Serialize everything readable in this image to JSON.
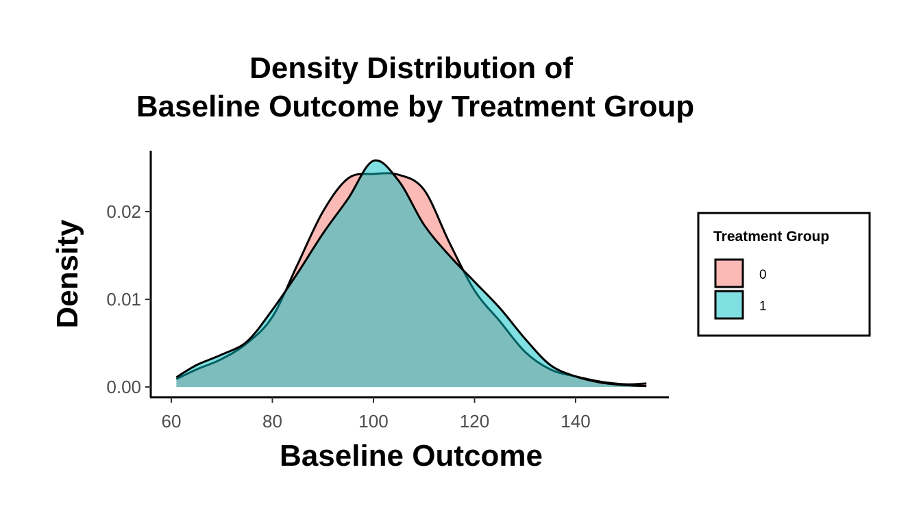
{
  "chart_data": {
    "type": "area",
    "subtype": "density",
    "title_lines": [
      "Density Distribution of",
      "Baseline Outcome by Treatment Group"
    ],
    "xlabel": "Baseline Outcome",
    "ylabel": "Density",
    "xlim": [
      57,
      158
    ],
    "ylim": [
      -0.0012,
      0.027
    ],
    "x_ticks": [
      60,
      80,
      100,
      120,
      140
    ],
    "x_tick_labels": [
      "60",
      "80",
      "100",
      "120",
      "140"
    ],
    "y_ticks": [
      0,
      0.01,
      0.02
    ],
    "y_tick_labels": [
      "0.00",
      "0.01",
      "0.02"
    ],
    "grid": false,
    "legend": {
      "title": "Treatment Group",
      "placement": "right"
    },
    "x": [
      61,
      65,
      70,
      75,
      80,
      85,
      90,
      95,
      100,
      105,
      110,
      115,
      120,
      125,
      130,
      135,
      140,
      145,
      150,
      154
    ],
    "series": [
      {
        "name": "0",
        "color": "#F8766D",
        "values": [
          0.0009,
          0.002,
          0.0032,
          0.005,
          0.008,
          0.014,
          0.02,
          0.0238,
          0.0243,
          0.0242,
          0.0225,
          0.0165,
          0.011,
          0.0075,
          0.004,
          0.002,
          0.0012,
          0.0006,
          0.0003,
          0.0004
        ]
      },
      {
        "name": "1",
        "color": "#00BFC4",
        "values": [
          0.0011,
          0.0025,
          0.0037,
          0.0052,
          0.0088,
          0.013,
          0.0175,
          0.0215,
          0.0258,
          0.0235,
          0.0185,
          0.015,
          0.012,
          0.009,
          0.0055,
          0.0025,
          0.0012,
          0.0005,
          0.0002,
          0.0001
        ]
      }
    ]
  }
}
